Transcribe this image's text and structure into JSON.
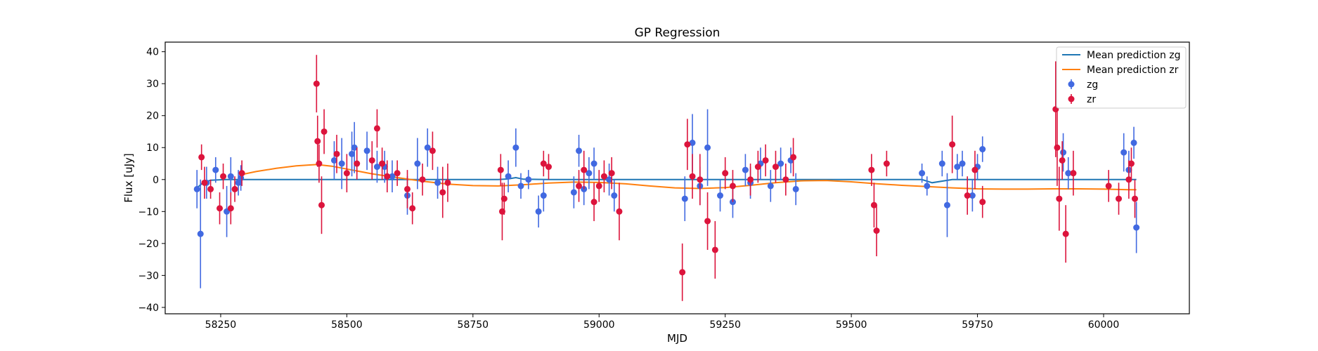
{
  "chart_data": {
    "type": "scatter",
    "title": "GP Regression",
    "xlabel": "MJD",
    "ylabel": "Flux [uJy]",
    "xlim": [
      58140,
      60170
    ],
    "ylim": [
      -42,
      43
    ],
    "xticks": [
      58250,
      58500,
      58750,
      59000,
      59250,
      59500,
      59750,
      60000
    ],
    "yticks": [
      -40,
      -30,
      -20,
      -10,
      0,
      10,
      20,
      30,
      40
    ],
    "grid": false,
    "legend_position": "top-right",
    "colors": {
      "zg_line": "#1f77b4",
      "zr_line": "#ff7f0e",
      "zg_points": "#4169e1",
      "zr_points": "#dc143c"
    },
    "series": [
      {
        "name": "Mean prediction zg",
        "kind": "line",
        "x": [
          58200,
          58215,
          58230,
          58260,
          58300,
          58400,
          58500,
          58600,
          58700,
          58800,
          58820,
          58835,
          58850,
          58900,
          59000,
          59100,
          59200,
          59300,
          59400,
          59500,
          59600,
          59640,
          59660,
          59700,
          59800,
          59900,
          60000,
          60065
        ],
        "y": [
          -3,
          -1,
          -0.2,
          0,
          0,
          0,
          0,
          0,
          0,
          0,
          0.2,
          0.6,
          0.1,
          0,
          0,
          0,
          0,
          0,
          0,
          0,
          0,
          0,
          -1.0,
          0,
          0,
          0,
          0,
          0
        ]
      },
      {
        "name": "Mean prediction zr",
        "kind": "line",
        "x": [
          58290,
          58320,
          58360,
          58400,
          58440,
          58470,
          58500,
          58550,
          58600,
          58650,
          58700,
          58750,
          58800,
          58850,
          58900,
          58950,
          59000,
          59050,
          59100,
          59150,
          59200,
          59250,
          59300,
          59350,
          59400,
          59450,
          59500,
          59550,
          59600,
          59650,
          59700,
          59750,
          59800,
          59850,
          59900,
          59950,
          60000,
          60050,
          60065
        ],
        "y": [
          1.5,
          2.5,
          3.5,
          4.3,
          4.7,
          4.2,
          3.3,
          1.8,
          0.6,
          -0.5,
          -1.4,
          -1.9,
          -2.0,
          -1.6,
          -1.1,
          -0.8,
          -0.9,
          -1.3,
          -2.0,
          -2.6,
          -2.8,
          -2.5,
          -1.8,
          -1.0,
          -0.4,
          -0.3,
          -0.7,
          -1.3,
          -1.8,
          -2.2,
          -2.6,
          -2.9,
          -3.0,
          -3.0,
          -2.9,
          -2.9,
          -3.0,
          -3.2,
          -3.2
        ]
      },
      {
        "name": "zg",
        "kind": "errorbar",
        "x": [
          58203,
          58210,
          58222,
          58240,
          58262,
          58270,
          58285,
          58290,
          58475,
          58490,
          58510,
          58515,
          58540,
          58560,
          58575,
          58590,
          58620,
          58640,
          58660,
          58680,
          58820,
          58835,
          58845,
          58860,
          58880,
          58890,
          58950,
          58960,
          58970,
          58980,
          58990,
          59020,
          59030,
          59170,
          59185,
          59200,
          59215,
          59240,
          59265,
          59290,
          59300,
          59320,
          59340,
          59360,
          59380,
          59390,
          59640,
          59650,
          59680,
          59690,
          59710,
          59720,
          59740,
          59750,
          59760,
          59920,
          59930,
          60040,
          60050,
          60060,
          60065
        ],
        "y": [
          -3,
          -17,
          -1,
          3,
          -10,
          1,
          -1,
          0.5,
          6,
          5,
          8,
          10,
          9,
          4,
          4,
          1,
          -5,
          5,
          10,
          -1,
          1,
          10,
          -2,
          0,
          -10,
          -5,
          -4,
          9,
          -3,
          2,
          5,
          0,
          -5,
          -6,
          11.5,
          -2,
          10,
          -5,
          -7,
          3,
          -1,
          5,
          -2,
          5,
          6,
          -3,
          2,
          -2,
          5,
          -8,
          4,
          5,
          -5,
          4,
          9.5,
          8.5,
          2,
          8.5,
          3,
          11.5,
          -15
        ],
        "err": [
          6,
          17,
          5,
          4,
          8,
          6,
          4,
          4,
          6,
          8,
          7,
          8,
          6,
          5,
          5,
          5,
          6,
          8,
          6,
          5,
          5,
          6,
          4,
          3,
          5,
          5,
          5,
          5,
          5,
          5,
          5,
          5,
          5,
          7,
          9,
          6,
          12,
          5,
          5,
          5,
          5,
          5,
          5,
          5,
          4,
          5,
          3,
          3,
          4,
          10,
          4,
          4,
          5,
          4,
          4,
          6,
          5,
          6,
          6,
          5,
          8
        ]
      },
      {
        "name": "zr",
        "kind": "errorbar",
        "x": [
          58212,
          58218,
          58230,
          58248,
          58255,
          58270,
          58278,
          58292,
          58440,
          58442,
          58445,
          58450,
          58455,
          58480,
          58500,
          58520,
          58550,
          58560,
          58570,
          58580,
          58600,
          58620,
          58630,
          58650,
          58670,
          58690,
          58700,
          58805,
          58808,
          58812,
          58890,
          58900,
          58960,
          58970,
          58990,
          59000,
          59010,
          59025,
          59040,
          59165,
          59175,
          59185,
          59200,
          59215,
          59230,
          59250,
          59265,
          59300,
          59315,
          59330,
          59350,
          59370,
          59385,
          59540,
          59545,
          59550,
          59570,
          59700,
          59730,
          59745,
          59760,
          59905,
          59908,
          59912,
          59918,
          59925,
          59940,
          60010,
          60030,
          60050,
          60055,
          60062
        ],
        "y": [
          7,
          -1,
          -3,
          -9,
          1,
          -9,
          -3,
          2,
          30,
          12,
          5,
          -8,
          15,
          8,
          2,
          5,
          6,
          16,
          5,
          1,
          2,
          -3,
          -9,
          0,
          9,
          -4,
          -1,
          3,
          -10,
          -6,
          5,
          4,
          -2,
          3,
          -7,
          -2,
          1,
          2,
          -10,
          -29,
          11,
          1,
          0,
          -13,
          -22,
          2,
          -2,
          0,
          4,
          6,
          4,
          0,
          7,
          3,
          -8,
          -16,
          5,
          11,
          -5,
          3,
          -7,
          22,
          10,
          -6,
          6,
          -17,
          2,
          -2,
          -6,
          0,
          5,
          -6
        ],
        "err": [
          4,
          5,
          3,
          5,
          4,
          5,
          4,
          4,
          9,
          8,
          6,
          9,
          7,
          6,
          6,
          5,
          6,
          6,
          5,
          5,
          4,
          6,
          5,
          5,
          6,
          8,
          6,
          5,
          9,
          5,
          4,
          4,
          5,
          6,
          6,
          5,
          5,
          5,
          9,
          9,
          8,
          7,
          8,
          9,
          9,
          5,
          5,
          5,
          5,
          5,
          5,
          5,
          6,
          5,
          7,
          8,
          4,
          9,
          6,
          6,
          5,
          15,
          12,
          10,
          6,
          9,
          7,
          5,
          5,
          6,
          5,
          6
        ]
      }
    ]
  }
}
